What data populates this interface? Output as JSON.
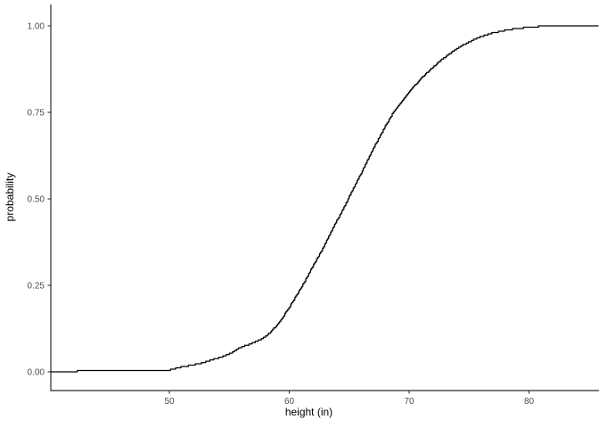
{
  "chart_data": {
    "type": "line",
    "subtype": "ecdf-step",
    "title": "",
    "xlabel": "height (in)",
    "ylabel": "probability",
    "xlim": [
      40.1,
      85.8
    ],
    "ylim": [
      0,
      1
    ],
    "x_ticks": [
      50,
      60,
      70,
      80
    ],
    "x_tick_labels": [
      "50",
      "60",
      "70",
      "80"
    ],
    "y_ticks": [
      0.0,
      0.25,
      0.5,
      0.75,
      1.0
    ],
    "y_tick_labels": [
      "0.00",
      "0.25",
      "0.50",
      "0.75",
      "1.00"
    ],
    "grid": false,
    "legend": "none",
    "colors": {
      "line": "#000000",
      "axis_line": "#2b2b2b",
      "tick_mark": "#333333",
      "axis_text": "#4d4d4d",
      "axis_title": "#000000",
      "background": "#ffffff"
    },
    "points": [
      [
        40.1,
        0.001
      ],
      [
        42.5,
        0.002
      ],
      [
        44.8,
        0.002
      ],
      [
        46.0,
        0.003
      ],
      [
        48.5,
        0.004
      ],
      [
        50.0,
        0.005
      ],
      [
        50.7,
        0.012
      ],
      [
        51.5,
        0.017
      ],
      [
        52.5,
        0.024
      ],
      [
        53.3,
        0.032
      ],
      [
        54.2,
        0.042
      ],
      [
        55.0,
        0.052
      ],
      [
        55.6,
        0.065
      ],
      [
        56.2,
        0.074
      ],
      [
        56.9,
        0.083
      ],
      [
        57.5,
        0.092
      ],
      [
        58.1,
        0.104
      ],
      [
        58.7,
        0.125
      ],
      [
        59.3,
        0.15
      ],
      [
        59.8,
        0.176
      ],
      [
        60.3,
        0.204
      ],
      [
        60.8,
        0.233
      ],
      [
        61.3,
        0.262
      ],
      [
        61.7,
        0.29
      ],
      [
        62.2,
        0.32
      ],
      [
        62.7,
        0.351
      ],
      [
        63.2,
        0.385
      ],
      [
        63.7,
        0.42
      ],
      [
        64.3,
        0.459
      ],
      [
        64.9,
        0.5
      ],
      [
        65.5,
        0.541
      ],
      [
        66.0,
        0.575
      ],
      [
        66.5,
        0.61
      ],
      [
        67.0,
        0.645
      ],
      [
        67.5,
        0.678
      ],
      [
        68.0,
        0.71
      ],
      [
        68.5,
        0.74
      ],
      [
        69.1,
        0.77
      ],
      [
        69.7,
        0.798
      ],
      [
        70.4,
        0.826
      ],
      [
        71.1,
        0.852
      ],
      [
        71.9,
        0.878
      ],
      [
        72.7,
        0.903
      ],
      [
        73.6,
        0.925
      ],
      [
        74.4,
        0.943
      ],
      [
        75.2,
        0.957
      ],
      [
        76.0,
        0.969
      ],
      [
        76.9,
        0.979
      ],
      [
        77.8,
        0.986
      ],
      [
        78.7,
        0.991
      ],
      [
        79.7,
        0.995
      ],
      [
        80.7,
        0.998
      ],
      [
        81.8,
        0.999
      ],
      [
        82.5,
        1.0
      ],
      [
        85.8,
        1.0
      ]
    ]
  }
}
